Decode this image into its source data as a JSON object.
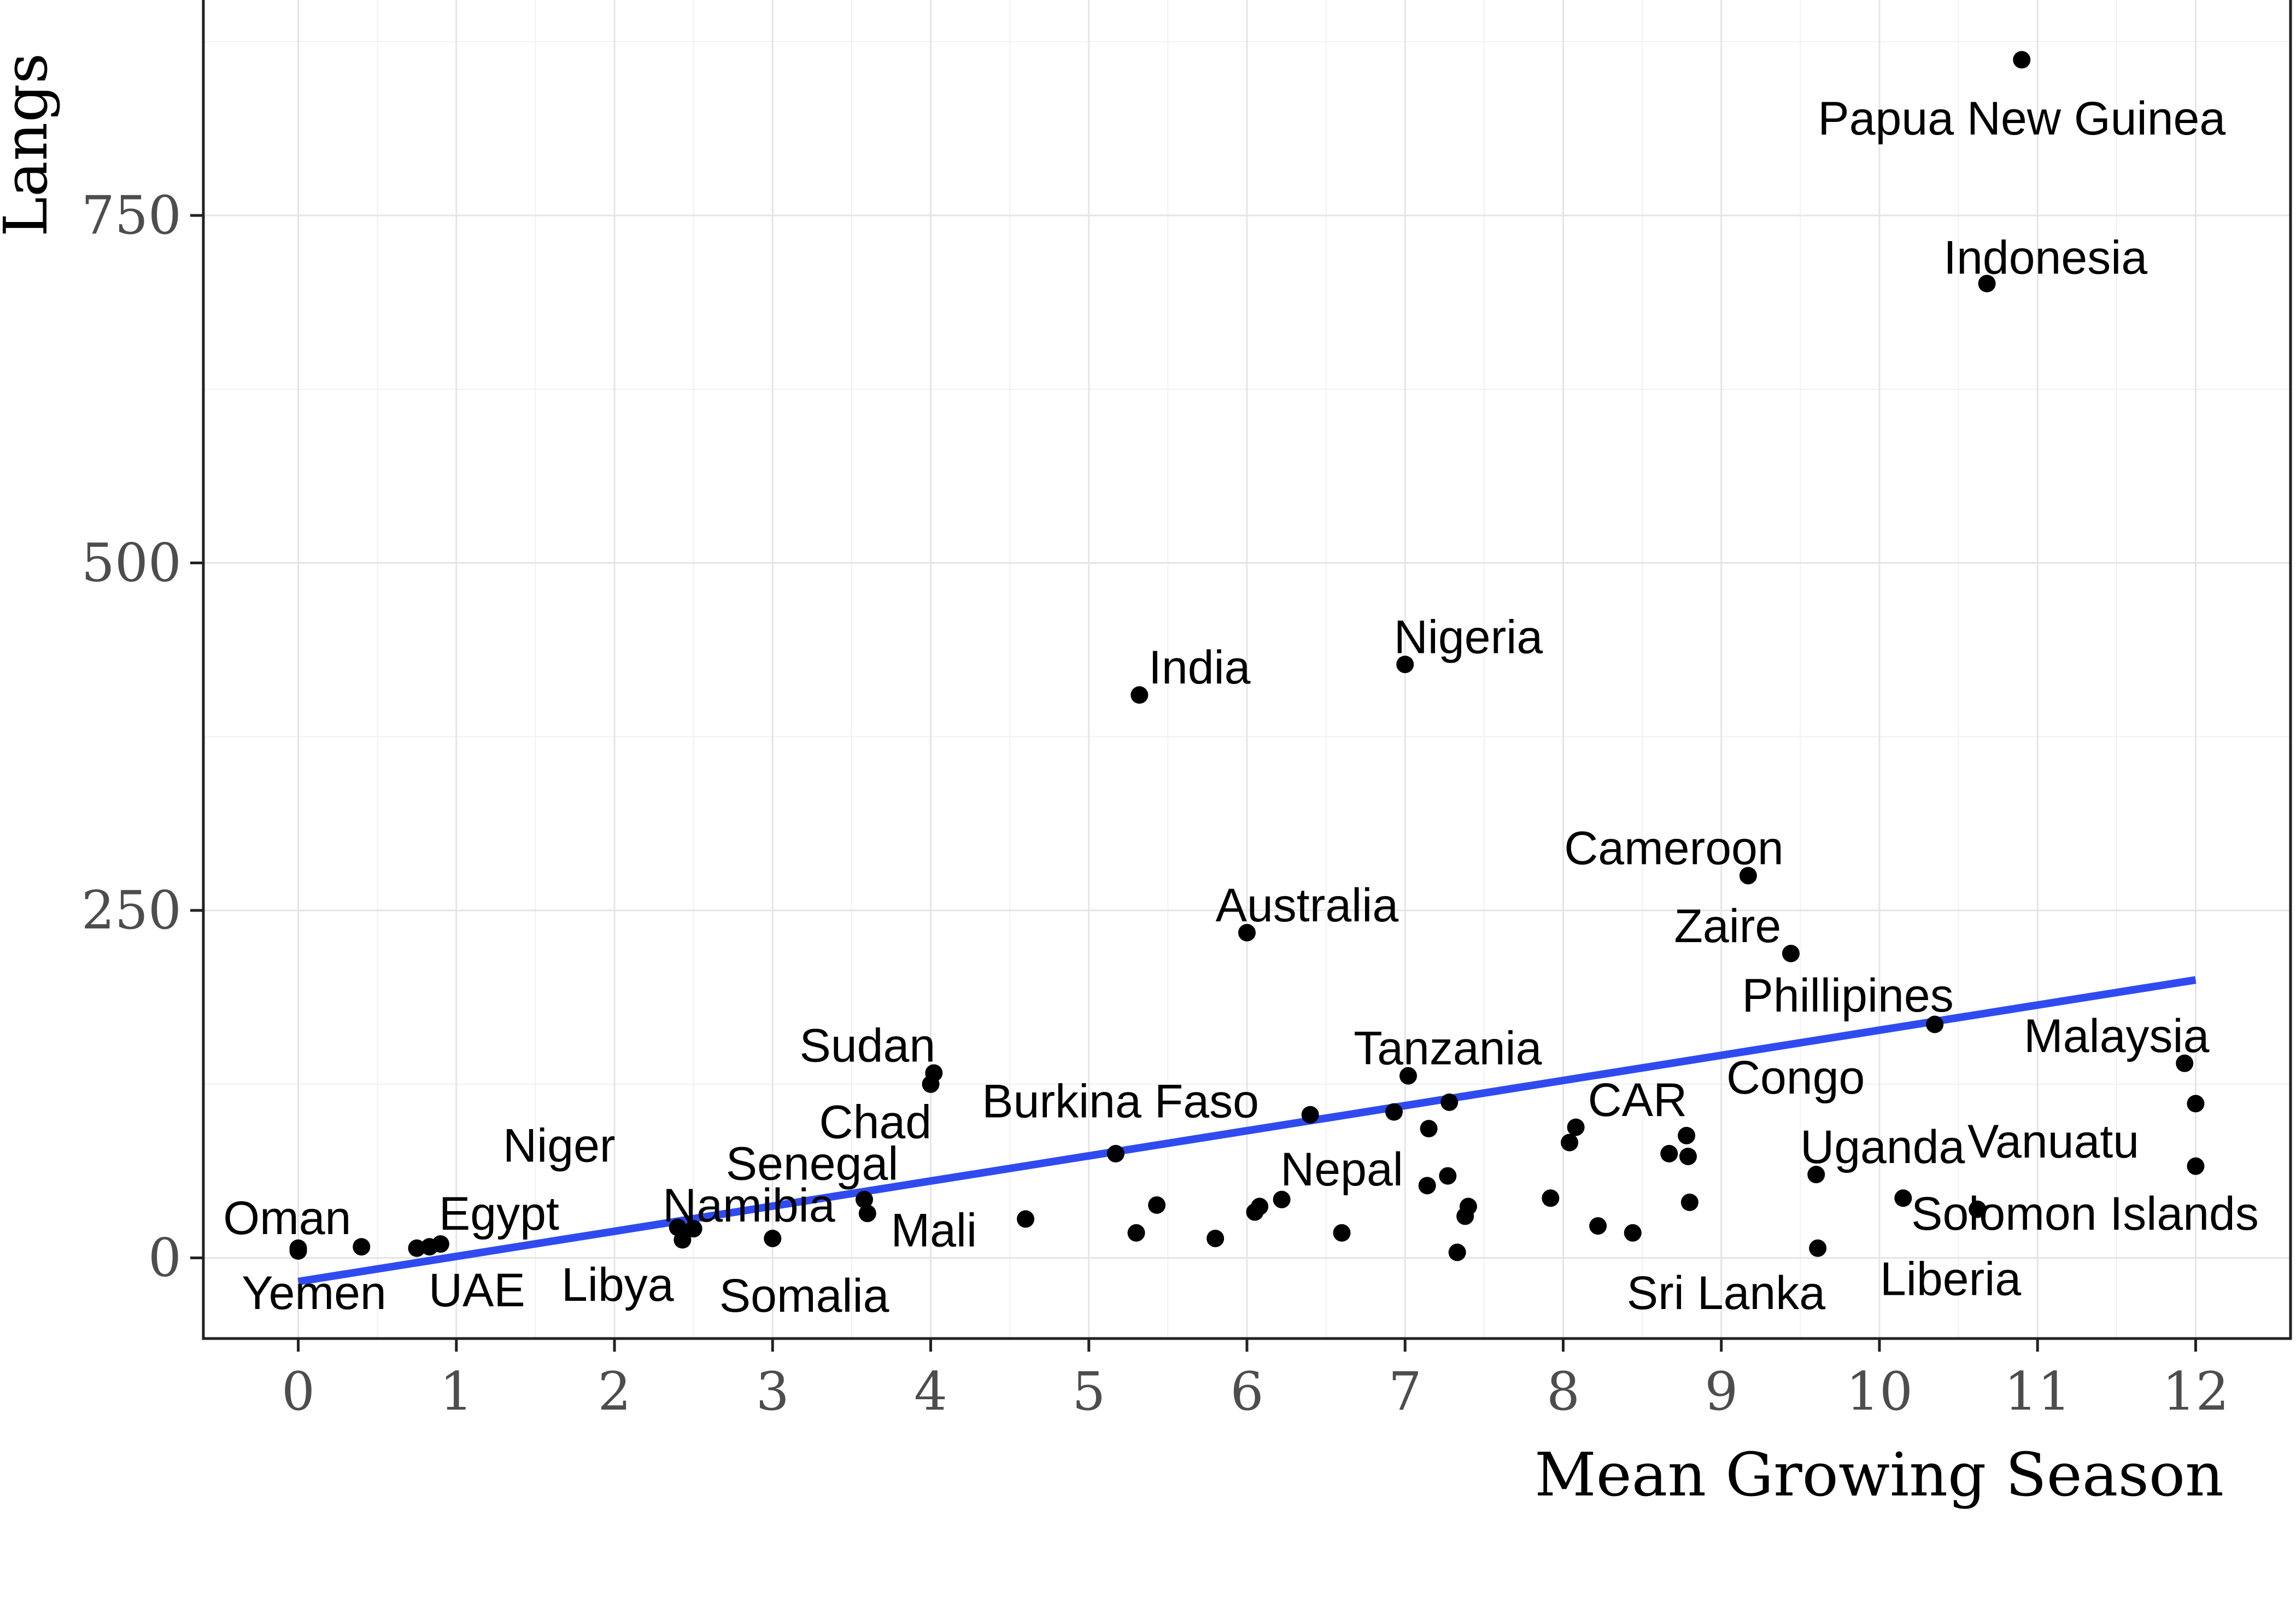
{
  "chart_data": {
    "type": "scatter",
    "title": "",
    "xlabel": "Mean Growing Season",
    "ylabel": "Langs",
    "xlim": [
      -0.6,
      12.6
    ],
    "ylim": [
      -58,
      905
    ],
    "x_ticks": [
      0,
      1,
      2,
      3,
      4,
      5,
      6,
      7,
      8,
      9,
      10,
      11,
      12
    ],
    "y_ticks": [
      0,
      250,
      500,
      750
    ],
    "grid": true,
    "trend_line": {
      "color": "#2F4BF0",
      "x": [
        0,
        12
      ],
      "y": [
        -17,
        200
      ]
    },
    "points": [
      {
        "x": 0.0,
        "y": 7
      },
      {
        "x": 0.0,
        "y": 5
      },
      {
        "x": 0.4,
        "y": 8
      },
      {
        "x": 0.75,
        "y": 7
      },
      {
        "x": 0.83,
        "y": 8
      },
      {
        "x": 0.9,
        "y": 10
      },
      {
        "x": 2.4,
        "y": 22
      },
      {
        "x": 2.43,
        "y": 13
      },
      {
        "x": 2.5,
        "y": 21
      },
      {
        "x": 3.0,
        "y": 14
      },
      {
        "x": 3.58,
        "y": 42
      },
      {
        "x": 3.6,
        "y": 32
      },
      {
        "x": 4.0,
        "y": 125
      },
      {
        "x": 4.02,
        "y": 133
      },
      {
        "x": 4.6,
        "y": 28
      },
      {
        "x": 5.17,
        "y": 75
      },
      {
        "x": 5.3,
        "y": 18
      },
      {
        "x": 5.32,
        "y": 405
      },
      {
        "x": 5.43,
        "y": 38
      },
      {
        "x": 5.8,
        "y": 14
      },
      {
        "x": 6.0,
        "y": 234
      },
      {
        "x": 6.05,
        "y": 33
      },
      {
        "x": 6.08,
        "y": 37
      },
      {
        "x": 6.22,
        "y": 42
      },
      {
        "x": 6.4,
        "y": 103
      },
      {
        "x": 6.6,
        "y": 18
      },
      {
        "x": 6.93,
        "y": 105
      },
      {
        "x": 7.0,
        "y": 427
      },
      {
        "x": 7.02,
        "y": 131
      },
      {
        "x": 7.14,
        "y": 52
      },
      {
        "x": 7.15,
        "y": 93
      },
      {
        "x": 7.27,
        "y": 59
      },
      {
        "x": 7.28,
        "y": 112
      },
      {
        "x": 7.33,
        "y": 4
      },
      {
        "x": 7.38,
        "y": 30
      },
      {
        "x": 7.4,
        "y": 37
      },
      {
        "x": 7.92,
        "y": 43
      },
      {
        "x": 8.04,
        "y": 83
      },
      {
        "x": 8.08,
        "y": 94
      },
      {
        "x": 8.22,
        "y": 23
      },
      {
        "x": 8.44,
        "y": 18
      },
      {
        "x": 8.67,
        "y": 75
      },
      {
        "x": 8.78,
        "y": 88
      },
      {
        "x": 8.79,
        "y": 73
      },
      {
        "x": 8.8,
        "y": 40
      },
      {
        "x": 9.17,
        "y": 275
      },
      {
        "x": 9.44,
        "y": 219
      },
      {
        "x": 9.6,
        "y": 60
      },
      {
        "x": 9.61,
        "y": 7
      },
      {
        "x": 10.15,
        "y": 43
      },
      {
        "x": 10.35,
        "y": 168
      },
      {
        "x": 10.62,
        "y": 35
      },
      {
        "x": 10.68,
        "y": 701
      },
      {
        "x": 10.9,
        "y": 862
      },
      {
        "x": 11.93,
        "y": 140
      },
      {
        "x": 12.0,
        "y": 111
      },
      {
        "x": 12.0,
        "y": 66
      }
    ],
    "labels": [
      {
        "text": "Papua New Guinea",
        "x": 10.9,
        "y": 820
      },
      {
        "text": "Indonesia",
        "x": 11.05,
        "y": 720
      },
      {
        "text": "India",
        "x": 5.7,
        "y": 425
      },
      {
        "text": "Nigeria",
        "x": 7.4,
        "y": 447
      },
      {
        "text": "Cameroon",
        "x": 8.7,
        "y": 295
      },
      {
        "text": "Australia",
        "x": 6.38,
        "y": 254
      },
      {
        "text": "Zaire",
        "x": 9.04,
        "y": 239
      },
      {
        "text": "Phillipines",
        "x": 9.8,
        "y": 189
      },
      {
        "text": "Malaysia",
        "x": 11.5,
        "y": 160
      },
      {
        "text": "Tanzania",
        "x": 7.27,
        "y": 151
      },
      {
        "text": "Sudan",
        "x": 3.6,
        "y": 153
      },
      {
        "text": "Congo",
        "x": 9.47,
        "y": 130
      },
      {
        "text": "Burkina Faso",
        "x": 5.2,
        "y": 113
      },
      {
        "text": "CAR",
        "x": 8.47,
        "y": 114
      },
      {
        "text": "Chad",
        "x": 3.65,
        "y": 98
      },
      {
        "text": "Vanuatu",
        "x": 11.1,
        "y": 84
      },
      {
        "text": "Niger",
        "x": 1.65,
        "y": 81
      },
      {
        "text": "Uganda",
        "x": 10.02,
        "y": 80
      },
      {
        "text": "Senegal",
        "x": 3.25,
        "y": 68
      },
      {
        "text": "Nepal",
        "x": 6.6,
        "y": 64
      },
      {
        "text": "Namibia",
        "x": 2.85,
        "y": 38
      },
      {
        "text": "Egypt",
        "x": 1.27,
        "y": 32
      },
      {
        "text": "Oman",
        "x": -0.07,
        "y": 29
      },
      {
        "text": "Solomon Islands",
        "x": 11.3,
        "y": 32
      },
      {
        "text": "Mali",
        "x": 4.02,
        "y": 20
      },
      {
        "text": "Libya",
        "x": 2.02,
        "y": -19
      },
      {
        "text": "UAE",
        "x": 1.13,
        "y": -23
      },
      {
        "text": "Somalia",
        "x": 3.2,
        "y": -27
      },
      {
        "text": "Yemen",
        "x": 0.1,
        "y": -25
      },
      {
        "text": "Sri Lanka",
        "x": 9.03,
        "y": -25
      },
      {
        "text": "Liberia",
        "x": 10.45,
        "y": -15
      }
    ]
  }
}
